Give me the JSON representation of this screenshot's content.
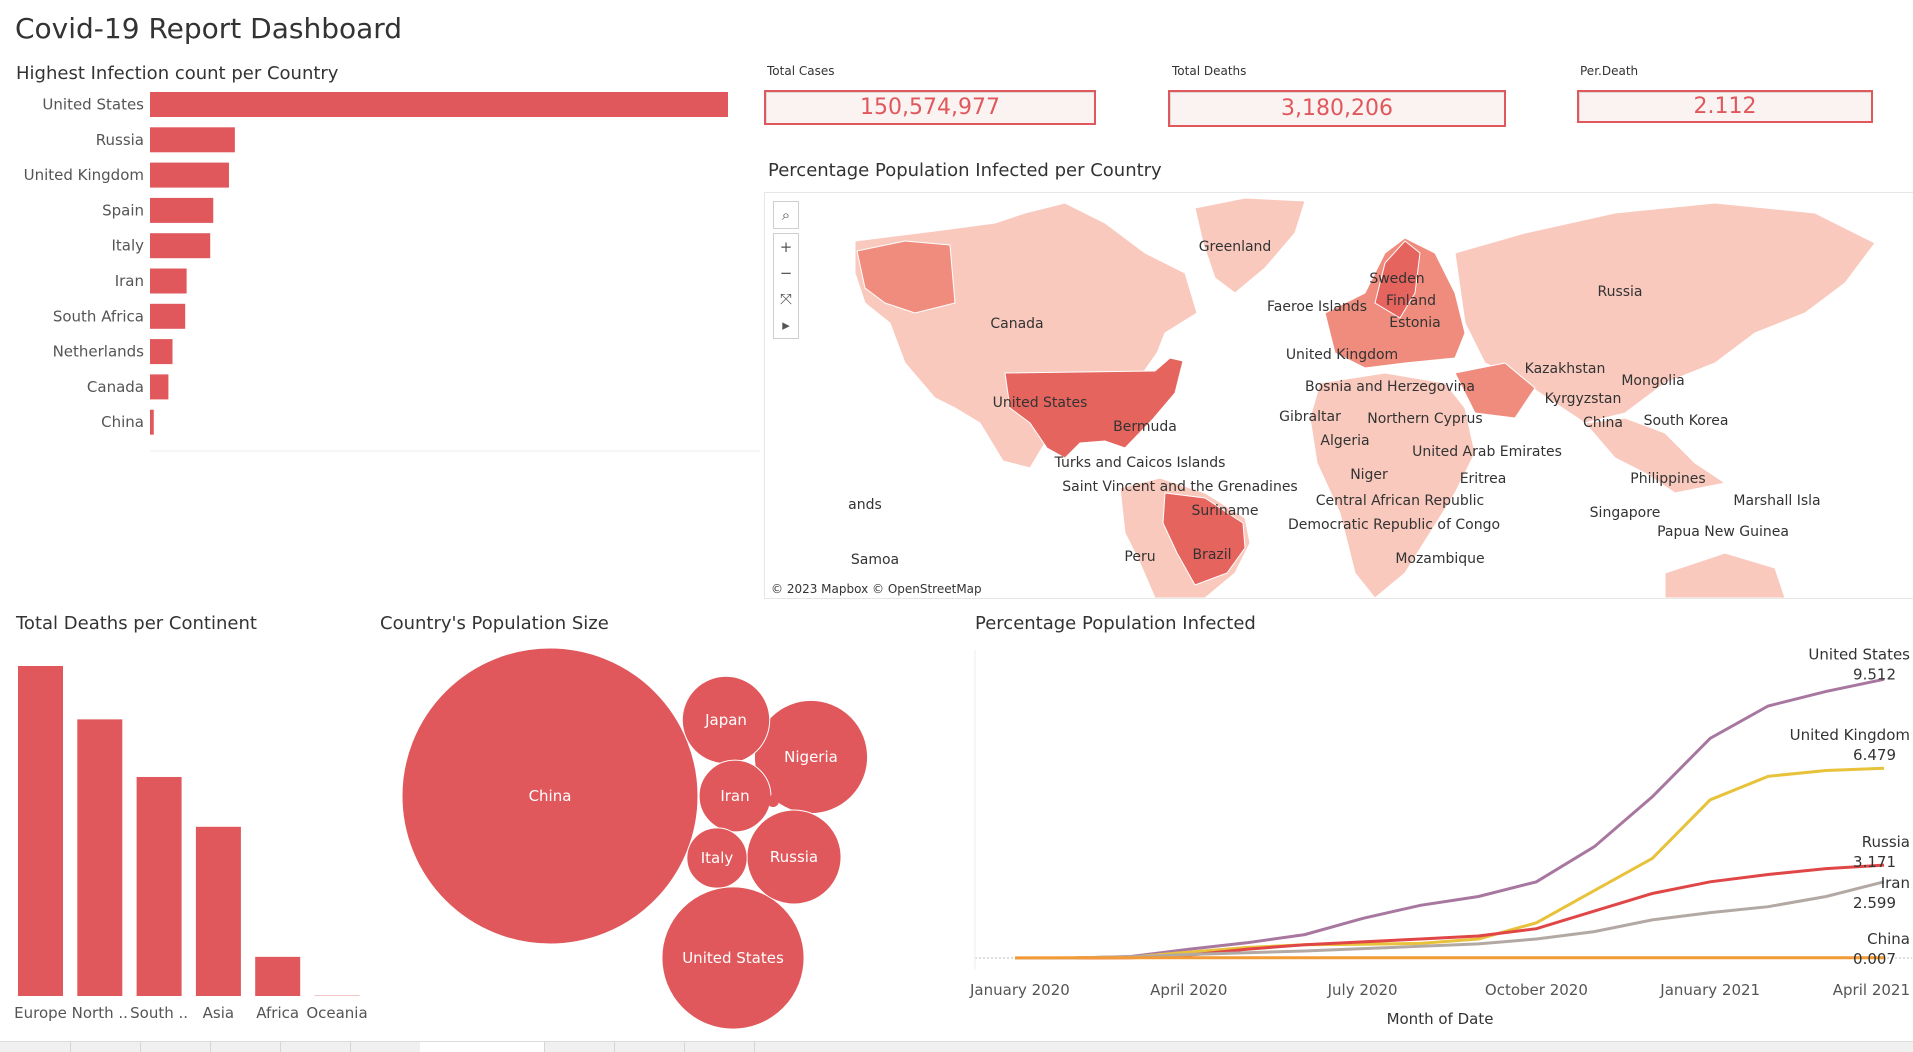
{
  "page": {
    "title": "Covid-19 Report Dashboard"
  },
  "colors": {
    "accent": "#e0585b",
    "kpi_background": "#faf3f2",
    "map_low": "#f9c9bd",
    "map_mid": "#ef8c7d",
    "map_high": "#e6645e"
  },
  "kpis": [
    {
      "label": "Total Cases",
      "value": "150,574,977"
    },
    {
      "label": "Total Deaths",
      "value": "3,180,206"
    },
    {
      "label": "Per.Death",
      "value": "2.112"
    }
  ],
  "infection_bar": {
    "title": "Highest Infection count per Country"
  },
  "map": {
    "title": "Percentage Population Infected per Country",
    "attribution": "© 2023 Mapbox © OpenStreetMap",
    "tools": [
      {
        "name": "search-icon",
        "glyph": "⌕"
      },
      {
        "name": "zoom-in-icon",
        "glyph": "+"
      },
      {
        "name": "zoom-out-icon",
        "glyph": "−"
      },
      {
        "name": "reset-map-icon",
        "glyph": "⤧"
      },
      {
        "name": "expand-toolbar-icon",
        "glyph": "▸"
      }
    ],
    "labels": [
      "Greenland",
      "Canada",
      "United States",
      "Bermuda",
      "Turks and Caicos Islands",
      "Saint Vincent and the Grenadines",
      "Suriname",
      "Peru",
      "Brazil",
      "ands",
      "Samoa",
      "Sweden",
      "Finland",
      "Faeroe Islands",
      "Estonia",
      "United Kingdom",
      "Bosnia and Herzegovina",
      "Gibraltar",
      "Northern Cyprus",
      "Algeria",
      "Niger",
      "Eritrea",
      "Central African Republic",
      "Democratic Republic of Congo",
      "Mozambique",
      "United Arab Emirates",
      "Kazakhstan",
      "Kyrgyzstan",
      "Russia",
      "Mongolia",
      "China",
      "South Korea",
      "Philippines",
      "Singapore",
      "Papua New Guinea",
      "Marshall Isla"
    ]
  },
  "continent_chart": {
    "title": "Total Deaths per Continent"
  },
  "population_chart": {
    "title": "Country's Population Size"
  },
  "trend_chart": {
    "title": "Percentage Population Infected",
    "xlabel": "Month of Date"
  },
  "chart_data": [
    {
      "id": "infection_bar",
      "type": "bar",
      "orientation": "horizontal",
      "title": "Highest Infection count per Country",
      "categories": [
        "United States",
        "Russia",
        "United Kingdom",
        "Spain",
        "Italy",
        "Iran",
        "South Africa",
        "Netherlands",
        "Canada",
        "China"
      ],
      "values": [
        32350000,
        4750000,
        4420000,
        3540000,
        3370000,
        2050000,
        1970000,
        1260000,
        1030000,
        210000
      ],
      "grid": false,
      "color": "#e0585b"
    },
    {
      "id": "continent_deaths",
      "type": "bar",
      "title": "Total Deaths per Continent",
      "categories": [
        "Europe",
        "North ..",
        "South ..",
        "Asia",
        "Africa",
        "Oceania"
      ],
      "values": [
        1020000,
        855000,
        677000,
        523000,
        121000,
        1100
      ],
      "grid": false,
      "color": "#e0585b"
    },
    {
      "id": "population_size",
      "type": "bubble",
      "title": "Country's Population Size",
      "categories": [
        "China",
        "United States",
        "Nigeria",
        "Russia",
        "Japan",
        "Iran",
        "Italy"
      ],
      "values": [
        1444000000,
        333000000,
        211000000,
        146000000,
        126000000,
        85000000,
        60000000
      ],
      "color": "#e0585b"
    },
    {
      "id": "infected_trend",
      "type": "line",
      "title": "Percentage Population Infected",
      "xlabel": "Month of Date",
      "ylabel": "",
      "x_ticks": [
        "January 2020",
        "April 2020",
        "July 2020",
        "October 2020",
        "January 2021",
        "April 2021"
      ],
      "x": [
        "2020-01",
        "2020-02",
        "2020-03",
        "2020-04",
        "2020-05",
        "2020-06",
        "2020-07",
        "2020-08",
        "2020-09",
        "2020-10",
        "2020-11",
        "2020-12",
        "2021-01",
        "2021-02",
        "2021-03",
        "2021-04"
      ],
      "ylim": [
        0,
        10
      ],
      "grid": false,
      "series": [
        {
          "name": "United States",
          "color": "#a8779f",
          "last_label": "9.512",
          "values": [
            0.0,
            0.0,
            0.05,
            0.3,
            0.52,
            0.8,
            1.35,
            1.8,
            2.1,
            2.6,
            3.8,
            5.5,
            7.5,
            8.6,
            9.1,
            9.512
          ]
        },
        {
          "name": "United Kingdom",
          "color": "#e8c23a",
          "last_label": "6.479",
          "values": [
            0.0,
            0.0,
            0.03,
            0.2,
            0.36,
            0.45,
            0.47,
            0.5,
            0.65,
            1.2,
            2.3,
            3.4,
            5.4,
            6.2,
            6.4,
            6.479
          ]
        },
        {
          "name": "Russia",
          "color": "#e04646",
          "last_label": "3.171",
          "values": [
            0.0,
            0.0,
            0.01,
            0.1,
            0.3,
            0.45,
            0.55,
            0.65,
            0.75,
            1.0,
            1.6,
            2.2,
            2.6,
            2.85,
            3.05,
            3.171
          ]
        },
        {
          "name": "Iran",
          "color": "#b3a9a4",
          "last_label": "2.599",
          "values": [
            0.0,
            0.0,
            0.04,
            0.12,
            0.18,
            0.24,
            0.32,
            0.4,
            0.48,
            0.65,
            0.9,
            1.3,
            1.55,
            1.75,
            2.1,
            2.599
          ]
        },
        {
          "name": "China",
          "color": "#f29a36",
          "last_label": "0.007",
          "values": [
            0.005,
            0.006,
            0.006,
            0.006,
            0.006,
            0.006,
            0.006,
            0.006,
            0.006,
            0.006,
            0.006,
            0.006,
            0.007,
            0.007,
            0.007,
            0.007
          ]
        }
      ]
    }
  ]
}
